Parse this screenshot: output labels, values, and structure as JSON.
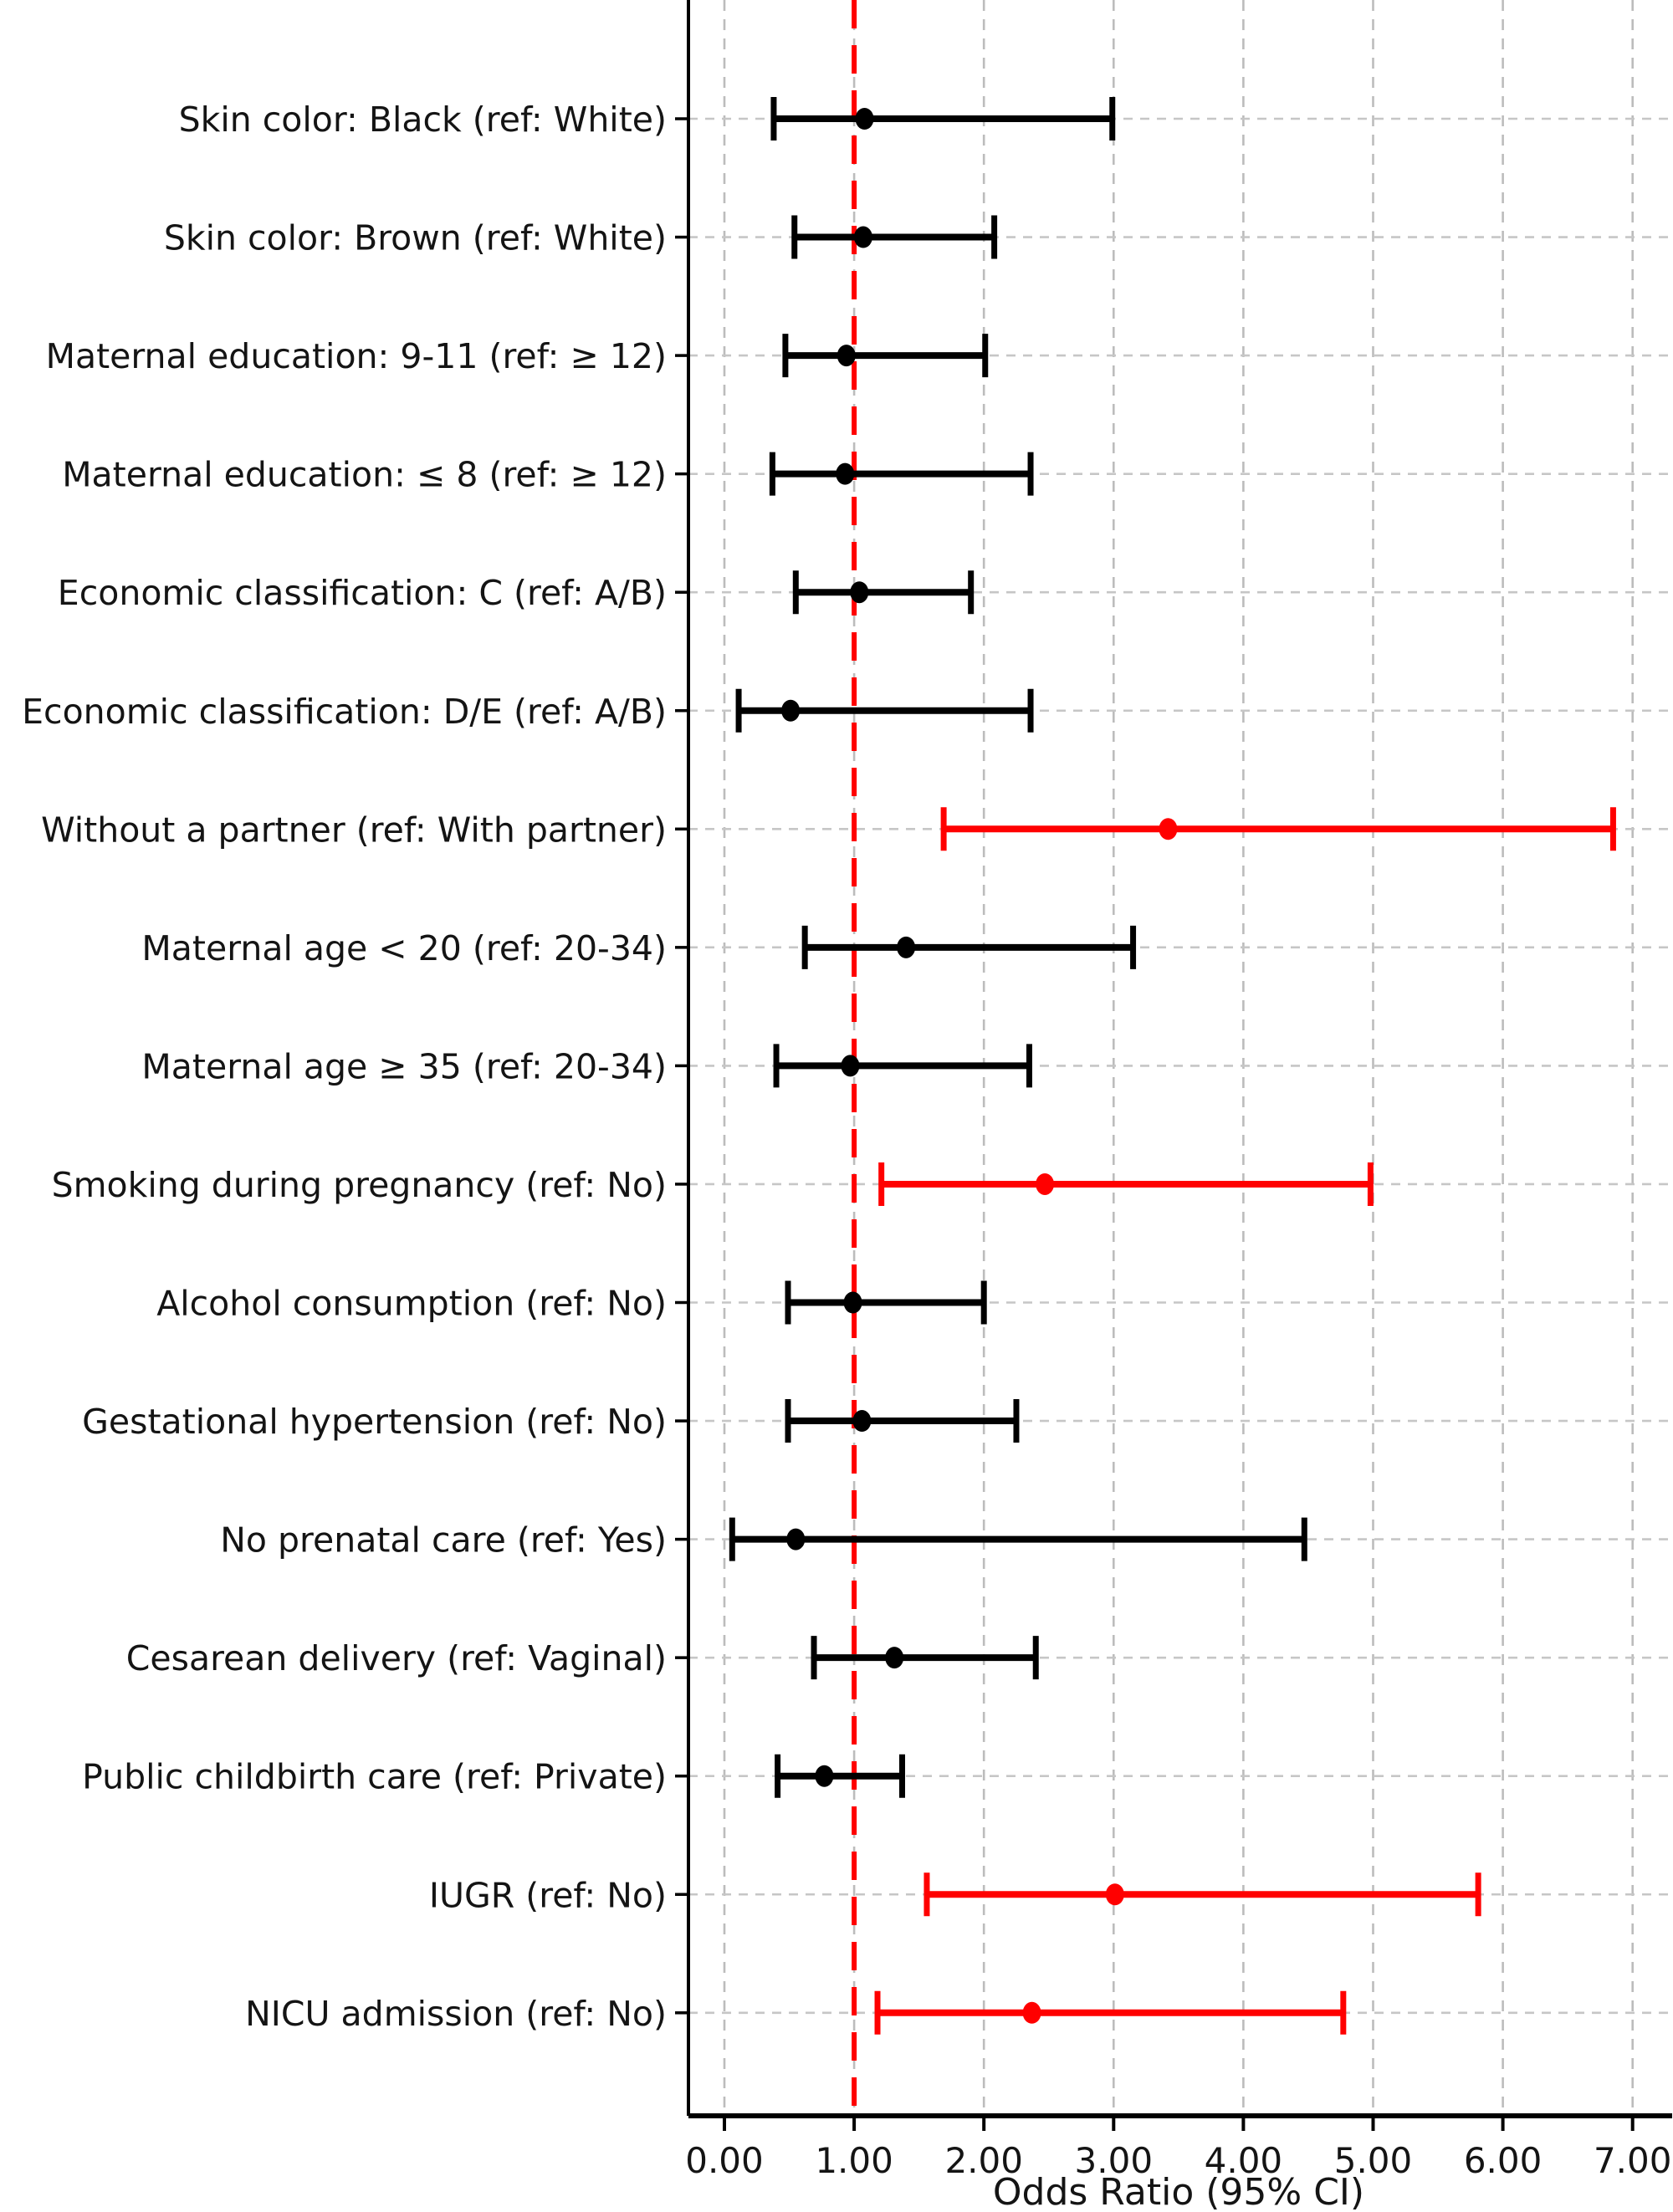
{
  "figure": {
    "background": "#ffffff",
    "text_color": "#141414"
  },
  "chart_data": {
    "type": "scatter",
    "variant": "forest-plot-horizontal-error-bars",
    "title": "",
    "xlabel": "Odds Ratio (95% CI)",
    "ylabel": "",
    "xlim": [
      -0.28,
      7.3
    ],
    "xticks": [
      0,
      1,
      2,
      3,
      4,
      5,
      6,
      7
    ],
    "xtick_labels": [
      "0.00",
      "1.00",
      "2.00",
      "3.00",
      "4.00",
      "5.00",
      "6.00",
      "7.00"
    ],
    "reference_line_x": 1.0,
    "grid": true,
    "legend_position": "none",
    "colors": {
      "default_series": "#000000",
      "significant_series": "#ff0000",
      "reference_line": "#ff0000",
      "gridline_vertical": "#bcbcbc",
      "gridline_horizontal": "#c6c6c6",
      "spine": "#000000"
    },
    "rows": [
      {
        "label": "Skin color: Black (ref: White)",
        "or": 1.08,
        "ci_low": 0.38,
        "ci_high": 2.99,
        "significant": false
      },
      {
        "label": "Skin color: Brown (ref: White)",
        "or": 1.07,
        "ci_low": 0.54,
        "ci_high": 2.08,
        "significant": false
      },
      {
        "label": "Maternal education: 9-11 (ref: ≥ 12)",
        "or": 0.94,
        "ci_low": 0.47,
        "ci_high": 2.01,
        "significant": false
      },
      {
        "label": "Maternal education: ≤ 8 (ref: ≥ 12)",
        "or": 0.93,
        "ci_low": 0.37,
        "ci_high": 2.36,
        "significant": false
      },
      {
        "label": "Economic classification: C (ref: A/B)",
        "or": 1.04,
        "ci_low": 0.55,
        "ci_high": 1.9,
        "significant": false
      },
      {
        "label": "Economic classification: D/E (ref: A/B)",
        "or": 0.51,
        "ci_low": 0.11,
        "ci_high": 2.36,
        "significant": false
      },
      {
        "label": "Without a partner (ref: With partner)",
        "or": 3.42,
        "ci_low": 1.69,
        "ci_high": 6.85,
        "significant": true
      },
      {
        "label": "Maternal age < 20 (ref: 20-34)",
        "or": 1.4,
        "ci_low": 0.62,
        "ci_high": 3.15,
        "significant": false
      },
      {
        "label": "Maternal age ≥ 35 (ref: 20-34)",
        "or": 0.97,
        "ci_low": 0.4,
        "ci_high": 2.35,
        "significant": false
      },
      {
        "label": "Smoking during pregnancy (ref: No)",
        "or": 2.47,
        "ci_low": 1.21,
        "ci_high": 4.98,
        "significant": true
      },
      {
        "label": "Alcohol consumption (ref: No)",
        "or": 0.99,
        "ci_low": 0.49,
        "ci_high": 2.0,
        "significant": false
      },
      {
        "label": "Gestational hypertension (ref: No)",
        "or": 1.06,
        "ci_low": 0.49,
        "ci_high": 2.25,
        "significant": false
      },
      {
        "label": "No prenatal care (ref: Yes)",
        "or": 0.55,
        "ci_low": 0.06,
        "ci_high": 4.47,
        "significant": false
      },
      {
        "label": "Cesarean delivery (ref: Vaginal)",
        "or": 1.31,
        "ci_low": 0.69,
        "ci_high": 2.4,
        "significant": false
      },
      {
        "label": "Public childbirth care (ref: Private)",
        "or": 0.77,
        "ci_low": 0.41,
        "ci_high": 1.37,
        "significant": false
      },
      {
        "label": "IUGR (ref: No)",
        "or": 3.01,
        "ci_low": 1.56,
        "ci_high": 5.81,
        "significant": true
      },
      {
        "label": "NICU admission (ref: No)",
        "or": 2.37,
        "ci_low": 1.18,
        "ci_high": 4.77,
        "significant": true
      }
    ]
  }
}
